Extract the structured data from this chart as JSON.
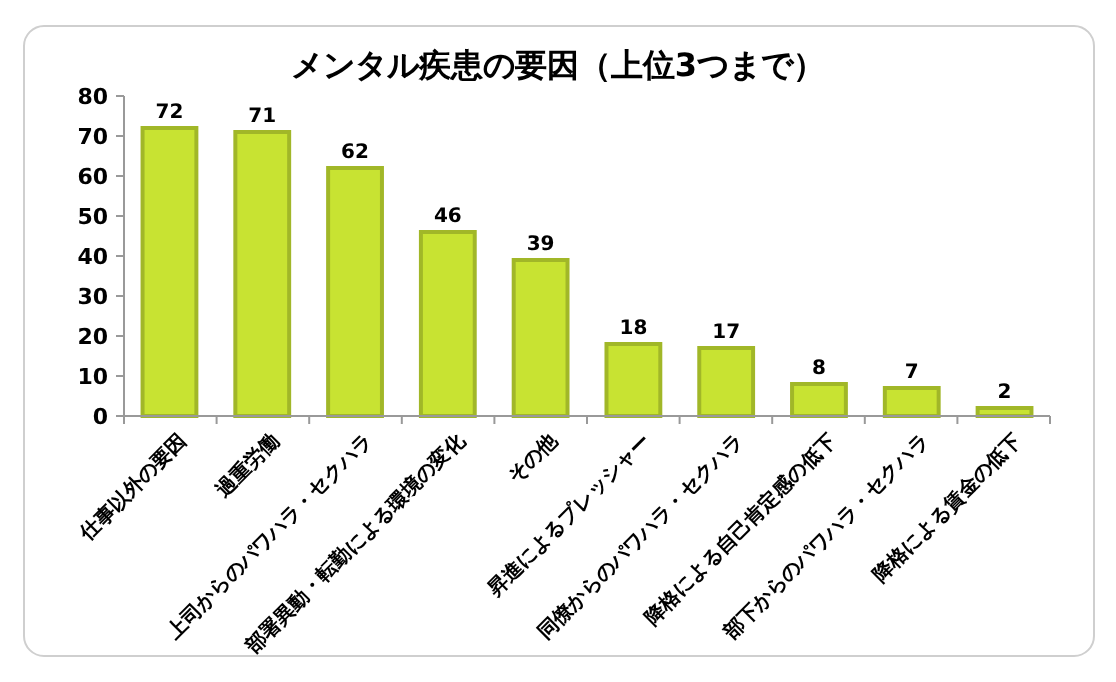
{
  "chart_data": {
    "type": "bar",
    "title": "メンタル疾患の要因（上位3つまで）",
    "categories": [
      "仕事以外の要因",
      "過重労働",
      "上司からのパワハラ・セクハラ",
      "部署異動・転勤による環境の変化",
      "その他",
      "昇進によるプレッシャー",
      "同僚からのパワハラ・セクハラ",
      "降格による自己肯定感の低下",
      "部下からのパワハラ・セクハラ",
      "降格による賃金の低下"
    ],
    "values": [
      72,
      71,
      62,
      46,
      39,
      18,
      17,
      8,
      7,
      2
    ],
    "color": "#c8e332",
    "ylim": [
      0,
      80
    ],
    "yticks": [
      0,
      10,
      20,
      30,
      40,
      50,
      60,
      70,
      80
    ],
    "data_labels": true,
    "grid": false
  }
}
